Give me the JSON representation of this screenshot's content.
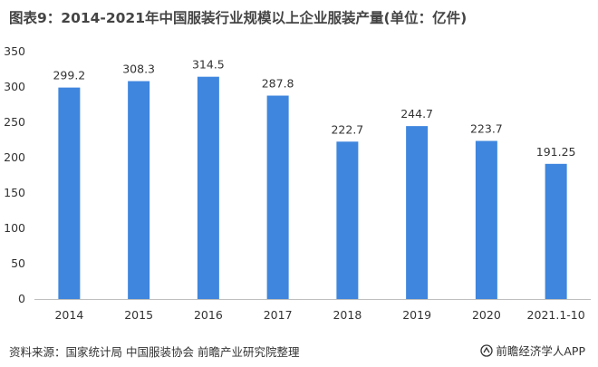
{
  "title": "图表9：2014-2021年中国服装行业规模以上企业服装产量(单位：亿件)",
  "source": "资料来源：国家统计局 中国服装协会 前瞻产业研究院整理",
  "brand": "前瞻经济学人APP",
  "colors": {
    "bar": "#3f86de",
    "axis": "#bfbfbf",
    "text": "#333333"
  },
  "chart_data": {
    "type": "bar",
    "categories": [
      "2014",
      "2015",
      "2016",
      "2017",
      "2018",
      "2019",
      "2020",
      "2021.1-10"
    ],
    "values": [
      299.2,
      308.3,
      314.5,
      287.8,
      222.7,
      244.7,
      223.7,
      191.25
    ],
    "data_labels": [
      "299.2",
      "308.3",
      "314.5",
      "287.8",
      "222.7",
      "244.7",
      "223.7",
      "191.25"
    ],
    "y_ticks": [
      "0",
      "50",
      "100",
      "150",
      "200",
      "250",
      "300",
      "350"
    ],
    "ylim": [
      0,
      350
    ],
    "grid": false
  }
}
